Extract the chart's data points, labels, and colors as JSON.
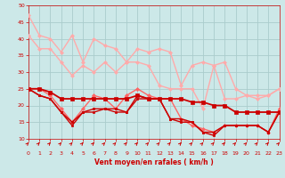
{
  "bg_color": "#cce8e8",
  "grid_color": "#aacccc",
  "xlabel": "Vent moyen/en rafales ( km/h )",
  "xlabel_color": "#cc0000",
  "tick_color": "#cc0000",
  "xmin": 0,
  "xmax": 23,
  "ymin": 10,
  "ymax": 50,
  "yticks": [
    10,
    15,
    20,
    25,
    30,
    35,
    40,
    45,
    50
  ],
  "xticks": [
    0,
    1,
    2,
    3,
    4,
    5,
    6,
    7,
    8,
    9,
    10,
    11,
    12,
    13,
    14,
    15,
    16,
    17,
    18,
    19,
    20,
    21,
    22,
    23
  ],
  "lines": [
    {
      "color": "#ffaaaa",
      "lw": 1.0,
      "marker": "D",
      "ms": 2.0,
      "data_x": [
        0,
        1,
        2,
        3,
        4,
        5,
        6,
        7,
        8,
        9,
        10,
        11,
        12,
        13,
        14,
        15,
        16,
        17,
        18,
        19,
        20,
        21,
        22,
        23
      ],
      "data_y": [
        47,
        41,
        40,
        36,
        41,
        33,
        40,
        38,
        37,
        33,
        37,
        36,
        37,
        36,
        26,
        32,
        33,
        32,
        33,
        25,
        23,
        23,
        23,
        25
      ]
    },
    {
      "color": "#ffaaaa",
      "lw": 1.0,
      "marker": "D",
      "ms": 2.0,
      "data_x": [
        0,
        1,
        2,
        3,
        4,
        5,
        6,
        7,
        8,
        9,
        10,
        11,
        12,
        13,
        14,
        15,
        16,
        17,
        18,
        19,
        20,
        21,
        22,
        23
      ],
      "data_y": [
        41,
        37,
        37,
        33,
        29,
        32,
        30,
        33,
        30,
        33,
        33,
        32,
        26,
        25,
        25,
        25,
        19,
        32,
        22,
        22,
        23,
        22,
        23,
        25
      ]
    },
    {
      "color": "#ff6666",
      "lw": 1.0,
      "marker": "D",
      "ms": 2.0,
      "data_x": [
        0,
        1,
        2,
        3,
        4,
        5,
        6,
        7,
        8,
        9,
        10,
        11,
        12,
        13,
        14,
        15,
        16,
        17,
        18,
        19,
        20,
        21,
        22,
        23
      ],
      "data_y": [
        25,
        25,
        23,
        19,
        15,
        19,
        23,
        22,
        19,
        23,
        25,
        23,
        22,
        22,
        16,
        14,
        13,
        12,
        14,
        14,
        14,
        14,
        12,
        19
      ]
    },
    {
      "color": "#cc0000",
      "lw": 1.3,
      "marker": "s",
      "ms": 2.2,
      "data_x": [
        0,
        1,
        2,
        3,
        4,
        5,
        6,
        7,
        8,
        9,
        10,
        11,
        12,
        13,
        14,
        15,
        16,
        17,
        18,
        19,
        20,
        21,
        22,
        23
      ],
      "data_y": [
        25,
        25,
        24,
        22,
        22,
        22,
        22,
        22,
        22,
        22,
        23,
        22,
        22,
        22,
        22,
        21,
        21,
        20,
        20,
        18,
        18,
        18,
        18,
        18
      ]
    },
    {
      "color": "#cc0000",
      "lw": 1.0,
      "marker": "s",
      "ms": 1.8,
      "data_x": [
        0,
        1,
        2,
        3,
        4,
        5,
        6,
        7,
        8,
        9,
        10,
        11,
        12,
        13,
        14,
        15,
        16,
        17,
        18,
        19,
        20,
        21,
        22,
        23
      ],
      "data_y": [
        25,
        23,
        22,
        18,
        14,
        18,
        19,
        19,
        19,
        18,
        23,
        22,
        22,
        16,
        16,
        15,
        12,
        11,
        14,
        14,
        14,
        14,
        12,
        18
      ]
    },
    {
      "color": "#cc0000",
      "lw": 1.0,
      "marker": "s",
      "ms": 1.8,
      "data_x": [
        0,
        1,
        2,
        3,
        4,
        5,
        6,
        7,
        8,
        9,
        10,
        11,
        12,
        13,
        14,
        15,
        16,
        17,
        18,
        19,
        20,
        21,
        22,
        23
      ],
      "data_y": [
        25,
        23,
        22,
        18,
        15,
        18,
        18,
        19,
        18,
        18,
        22,
        22,
        22,
        16,
        15,
        15,
        12,
        12,
        14,
        14,
        14,
        14,
        12,
        18
      ]
    }
  ],
  "arrow_color": "#cc0000",
  "arrow_size": 4.5
}
